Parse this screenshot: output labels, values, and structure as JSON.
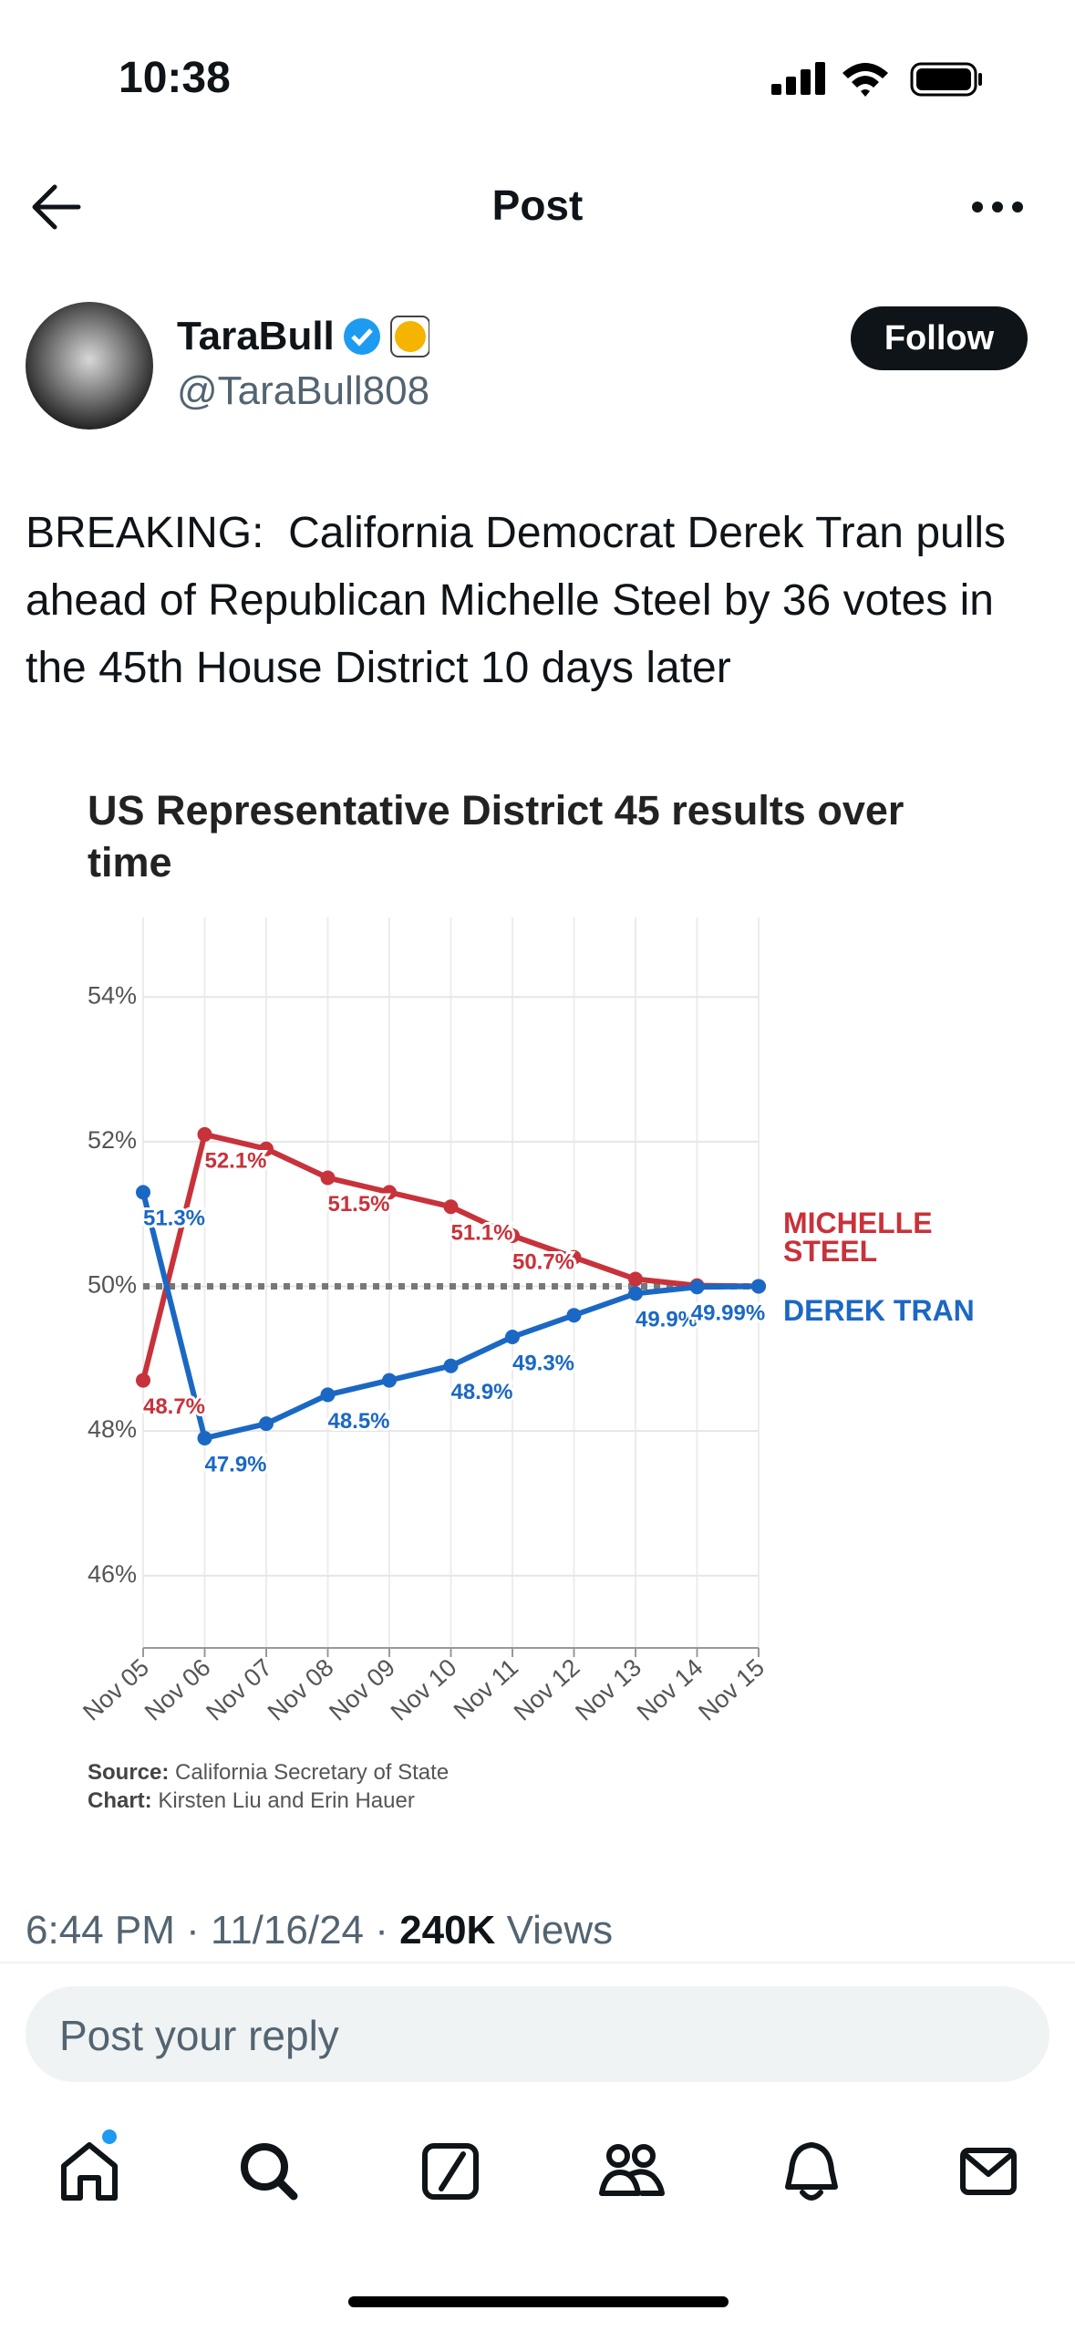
{
  "status_bar": {
    "time": "10:38"
  },
  "header": {
    "title": "Post"
  },
  "post": {
    "author": "TaraBull",
    "handle": "@TaraBull808",
    "follow": "Follow",
    "text": "BREAKING:  California Democrat Derek Tran pulls ahead of Republican Michelle Steel by 36 votes in the 45th House District 10 days later",
    "time": "6:44 PM",
    "separator": "·",
    "date": "11/16/24",
    "views": "240K",
    "views_label": "Views"
  },
  "chart_data": {
    "type": "line",
    "title": "US Representative District 45 results over time",
    "categories": [
      "Nov 05",
      "Nov 06",
      "Nov 07",
      "Nov 08",
      "Nov 09",
      "Nov 10",
      "Nov 11",
      "Nov 12",
      "Nov 13",
      "Nov 14",
      "Nov 15"
    ],
    "series": [
      {
        "name": "MICHELLE STEEL",
        "color": "#c8323a",
        "values": [
          48.7,
          52.1,
          51.9,
          51.5,
          51.3,
          51.1,
          50.7,
          50.4,
          50.1,
          50.01,
          50.0
        ],
        "value_labels": [
          "48.7%",
          "52.1%",
          null,
          "51.5%",
          null,
          "51.1%",
          "50.7%",
          null,
          null,
          null,
          null
        ]
      },
      {
        "name": "DEREK TRAN",
        "color": "#1b68c4",
        "values": [
          51.3,
          47.9,
          48.1,
          48.5,
          48.7,
          48.9,
          49.3,
          49.6,
          49.9,
          49.99,
          50.0
        ],
        "value_labels": [
          "51.3%",
          "47.9%",
          null,
          "48.5%",
          null,
          "48.9%",
          "49.3%",
          null,
          "49.9%",
          "49.99%",
          null
        ]
      }
    ],
    "ylim": [
      45,
      55.1
    ],
    "yticks": [
      {
        "value": 46,
        "label": "46%"
      },
      {
        "value": 48,
        "label": "48%"
      },
      {
        "value": 50,
        "label": "50%"
      },
      {
        "value": 52,
        "label": "52%"
      },
      {
        "value": 54,
        "label": "54%"
      }
    ],
    "grid": true,
    "reference_line": 50,
    "source_label": "Source:",
    "source": "California Secretary of State",
    "credit_label": "Chart:",
    "credit": "Kirsten Liu and Erin Hauer"
  },
  "reply": {
    "placeholder": "Post your reply"
  }
}
